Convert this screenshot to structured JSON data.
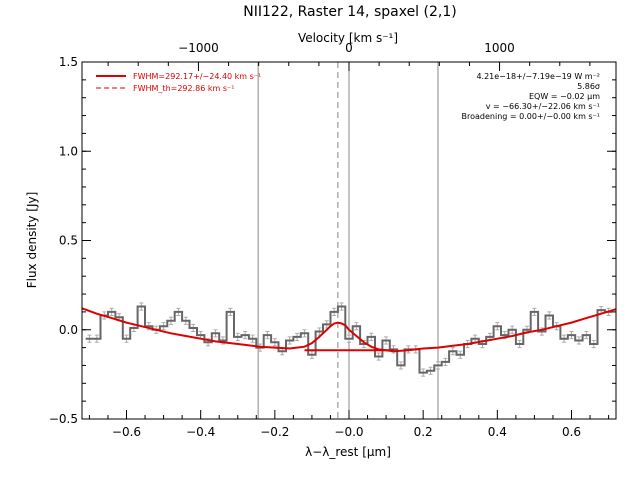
{
  "chart_data": {
    "type": "line",
    "title": "NII122, Raster 14, spaxel (2,1)",
    "xlabel": "λ−λ_rest [μm]",
    "ylabel": "Flux density [Jy]",
    "top_axis_label": "Velocity [km s⁻¹]",
    "xlim": [
      -0.72,
      0.72
    ],
    "ylim": [
      -0.5,
      1.5
    ],
    "x_ticks": [
      -0.6,
      -0.4,
      -0.2,
      0.0,
      0.2,
      0.4,
      0.6
    ],
    "x_tick_labels": [
      "−0.6",
      "−0.4",
      "−0.2",
      "−0.0",
      "0.2",
      "0.4",
      "0.6"
    ],
    "y_ticks": [
      -0.5,
      0.0,
      0.5,
      1.0,
      1.5
    ],
    "y_tick_labels": [
      "−0.5",
      "0.0",
      "0.5",
      "1.0",
      "1.5"
    ],
    "top_ticks": [
      -1000,
      0,
      1000
    ],
    "top_tick_labels": [
      "−1000",
      "0",
      "1000"
    ],
    "top_axis_um_per_kms": 0.000406,
    "legend": {
      "placement": "top-left",
      "entries": [
        {
          "text": "FWHM=292.17+/−24.40 km s⁻¹",
          "style": "solid",
          "color": "#dd0000"
        },
        {
          "text": "FWHM_th=292.86 km s⁻¹",
          "style": "dashed",
          "color": "#dd0000"
        }
      ]
    },
    "annotations": [
      "4.21e−18+/−7.19e−19 W m⁻²",
      "5.86σ",
      "EQW = −0.02 μm",
      "v = −66.30+/−22.06 km s⁻¹",
      "Broadening = 0.00+/−0.00 km s⁻¹"
    ],
    "vertical_lines": {
      "solid": [
        -0.245,
        0.0,
        0.24
      ],
      "dashed": [
        -0.03
      ]
    },
    "series": [
      {
        "kind": "step",
        "color": "#666666",
        "x": [
          -0.7,
          -0.68,
          -0.66,
          -0.64,
          -0.62,
          -0.6,
          -0.58,
          -0.56,
          -0.54,
          -0.52,
          -0.5,
          -0.48,
          -0.46,
          -0.44,
          -0.42,
          -0.4,
          -0.38,
          -0.36,
          -0.34,
          -0.32,
          -0.3,
          -0.28,
          -0.26,
          -0.24,
          -0.22,
          -0.2,
          -0.18,
          -0.16,
          -0.14,
          -0.12,
          -0.1,
          -0.08,
          -0.06,
          -0.04,
          -0.02,
          0.0,
          0.02,
          0.04,
          0.06,
          0.08,
          0.1,
          0.12,
          0.14,
          0.16,
          0.18,
          0.2,
          0.22,
          0.24,
          0.26,
          0.28,
          0.3,
          0.32,
          0.34,
          0.36,
          0.38,
          0.4,
          0.42,
          0.44,
          0.46,
          0.48,
          0.5,
          0.52,
          0.54,
          0.56,
          0.58,
          0.6,
          0.62,
          0.64,
          0.66,
          0.68,
          0.7
        ],
        "values": [
          -0.05,
          -0.05,
          0.08,
          0.1,
          0.07,
          -0.05,
          0.01,
          0.13,
          0.02,
          0.0,
          0.02,
          0.05,
          0.1,
          0.05,
          0.01,
          -0.03,
          -0.07,
          -0.02,
          -0.06,
          0.1,
          -0.04,
          -0.03,
          -0.05,
          -0.1,
          -0.03,
          -0.07,
          -0.12,
          -0.06,
          -0.04,
          -0.02,
          -0.14,
          -0.01,
          0.03,
          0.1,
          0.13,
          -0.05,
          0.02,
          -0.08,
          -0.04,
          -0.15,
          -0.06,
          -0.11,
          -0.2,
          -0.11,
          -0.11,
          -0.24,
          -0.23,
          -0.2,
          -0.18,
          -0.12,
          -0.14,
          -0.08,
          -0.05,
          -0.08,
          -0.04,
          0.02,
          -0.03,
          0.0,
          -0.08,
          0.0,
          0.1,
          -0.01,
          0.08,
          0.02,
          -0.05,
          -0.03,
          -0.06,
          -0.03,
          -0.08,
          0.11,
          0.1
        ],
        "errors": [
          0.02,
          0.02,
          0.02,
          0.02,
          0.02,
          0.02,
          0.02,
          0.02,
          0.02,
          0.02,
          0.02,
          0.02,
          0.02,
          0.02,
          0.02,
          0.02,
          0.02,
          0.02,
          0.02,
          0.02,
          0.02,
          0.02,
          0.02,
          0.02,
          0.02,
          0.02,
          0.02,
          0.02,
          0.02,
          0.02,
          0.02,
          0.02,
          0.02,
          0.02,
          0.02,
          0.02,
          0.02,
          0.02,
          0.02,
          0.02,
          0.02,
          0.02,
          0.02,
          0.02,
          0.02,
          0.02,
          0.02,
          0.02,
          0.02,
          0.02,
          0.02,
          0.02,
          0.02,
          0.02,
          0.02,
          0.02,
          0.02,
          0.02,
          0.02,
          0.02,
          0.02,
          0.02,
          0.02,
          0.02,
          0.02,
          0.02,
          0.02,
          0.02,
          0.02,
          0.02,
          0.02
        ]
      },
      {
        "kind": "line",
        "color": "#dd0000",
        "x": [
          -0.72,
          -0.68,
          -0.64,
          -0.6,
          -0.56,
          -0.52,
          -0.48,
          -0.44,
          -0.4,
          -0.36,
          -0.32,
          -0.28,
          -0.24,
          -0.2,
          -0.16,
          -0.12,
          -0.1,
          -0.08,
          -0.06,
          -0.05,
          -0.04,
          -0.03,
          -0.02,
          -0.01,
          0.0,
          0.02,
          0.04,
          0.06,
          0.08,
          0.12,
          0.16,
          0.2,
          0.24,
          0.28,
          0.32,
          0.36,
          0.4,
          0.44,
          0.48,
          0.52,
          0.56,
          0.6,
          0.64,
          0.68,
          0.72
        ],
        "values": [
          0.12,
          0.09,
          0.065,
          0.04,
          0.02,
          0.0,
          -0.02,
          -0.035,
          -0.05,
          -0.065,
          -0.075,
          -0.085,
          -0.095,
          -0.1,
          -0.105,
          -0.095,
          -0.075,
          -0.04,
          0.0,
          0.02,
          0.035,
          0.04,
          0.035,
          0.025,
          0.0,
          -0.035,
          -0.07,
          -0.095,
          -0.11,
          -0.12,
          -0.115,
          -0.105,
          -0.1,
          -0.09,
          -0.08,
          -0.065,
          -0.05,
          -0.035,
          -0.015,
          0.0,
          0.02,
          0.04,
          0.065,
          0.09,
          0.115
        ]
      },
      {
        "kind": "line",
        "color": "#dd0000",
        "x": [
          -0.12,
          0.12
        ],
        "values": [
          -0.115,
          -0.115
        ]
      }
    ]
  }
}
